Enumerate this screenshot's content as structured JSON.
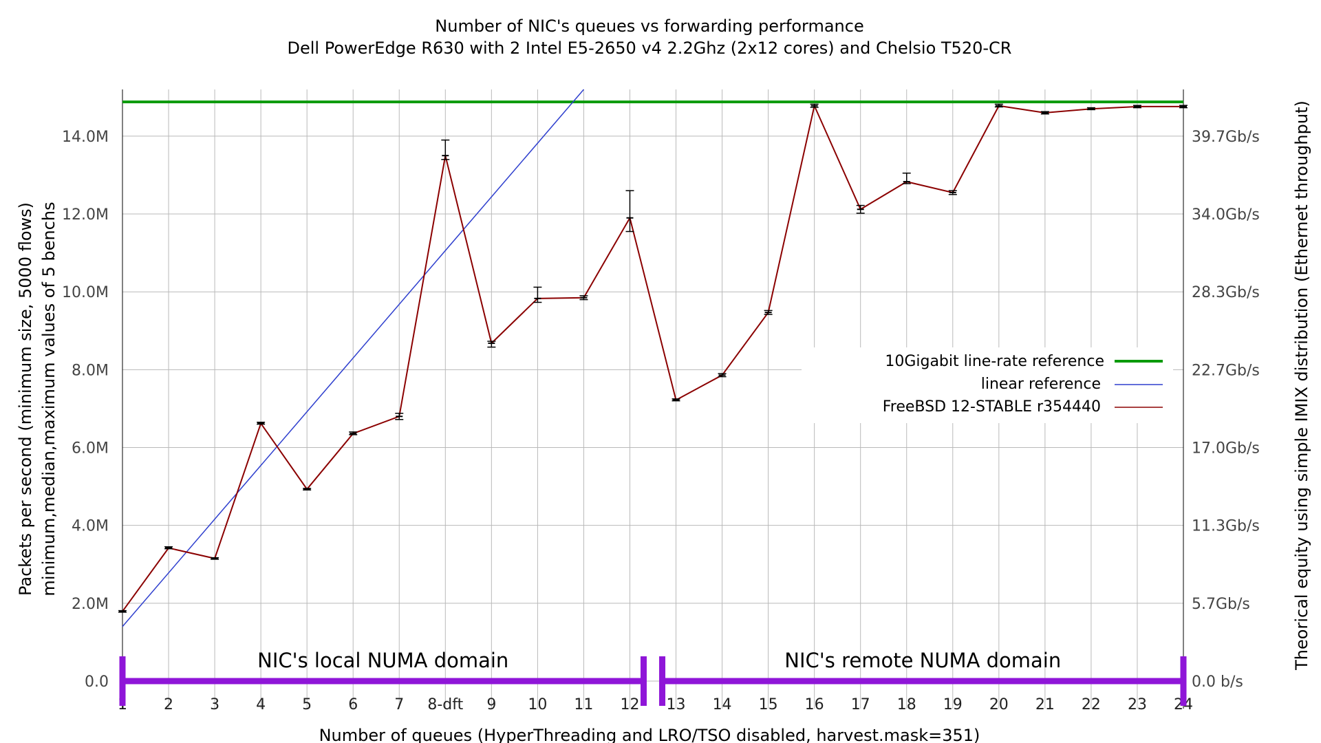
{
  "chart_data": {
    "type": "line",
    "title": "Number of NIC's queues vs forwarding performance",
    "subtitle": "Dell PowerEdge R630 with 2 Intel E5-2650 v4 2.2Ghz (2x12 cores) and Chelsio T520-CR",
    "xlabel": "Number of queues (HyperThreading and LRO/TSO disabled, harvest.mask=351)",
    "ylabel_line1": "Packets per second (minimum size, 5000 flows)",
    "ylabel_line2": "minimum,median,maximum values of 5 benchs",
    "y2label": "Theorical equity using simple IMIX distribution (Ethernet throughput)",
    "x_categories": [
      "1",
      "2",
      "3",
      "4",
      "5",
      "6",
      "7",
      "8-dft",
      "9",
      "10",
      "11",
      "12",
      "13",
      "14",
      "15",
      "16",
      "17",
      "18",
      "19",
      "20",
      "21",
      "22",
      "23",
      "24"
    ],
    "yticks": [
      "0.0",
      "2.0M",
      "4.0M",
      "6.0M",
      "8.0M",
      "10.0M",
      "12.0M",
      "14.0M"
    ],
    "ytick_values": [
      0,
      2,
      4,
      6,
      8,
      10,
      12,
      14
    ],
    "y2ticks": [
      "0.0 b/s",
      "5.7Gb/s",
      "11.3Gb/s",
      "17.0Gb/s",
      "22.7Gb/s",
      "28.3Gb/s",
      "34.0Gb/s",
      "39.7Gb/s"
    ],
    "ylim": [
      0,
      15.2
    ],
    "grid": true,
    "legend_position": "right",
    "series": [
      {
        "name": "FreeBSD 12-STABLE r354440",
        "color": "#8b0000",
        "median": [
          1.79,
          3.42,
          3.15,
          6.62,
          4.93,
          6.36,
          6.8,
          13.5,
          8.68,
          9.83,
          9.85,
          11.9,
          7.22,
          7.86,
          9.47,
          14.78,
          12.12,
          12.83,
          12.55,
          14.78,
          14.6,
          14.7,
          14.76,
          14.76
        ],
        "min": [
          1.77,
          3.4,
          3.13,
          6.6,
          4.91,
          6.33,
          6.72,
          13.4,
          8.58,
          9.73,
          9.8,
          11.55,
          7.2,
          7.82,
          9.42,
          14.74,
          12.02,
          12.78,
          12.5,
          14.75,
          14.57,
          14.68,
          14.73,
          14.73
        ],
        "max": [
          1.81,
          3.45,
          3.17,
          6.65,
          4.95,
          6.4,
          6.88,
          13.9,
          8.73,
          10.12,
          9.9,
          12.6,
          7.25,
          7.9,
          9.52,
          14.82,
          12.22,
          13.05,
          12.6,
          14.82,
          14.63,
          14.73,
          14.79,
          14.79
        ]
      },
      {
        "name": "linear reference",
        "color": "#2e3fce",
        "x_start": 1,
        "y_start": 1.4,
        "x_end": 11,
        "y_end": 15.2
      },
      {
        "name": "10Gigabit line-rate reference",
        "color": "#0a9a0a",
        "value": 14.88
      }
    ],
    "numa_domains": [
      {
        "label": "NIC's local NUMA domain",
        "from": "1",
        "to": "12",
        "color": "#8f16d8"
      },
      {
        "label": "NIC's remote NUMA domain",
        "from": "13",
        "to": "24",
        "color": "#8f16d8"
      }
    ]
  }
}
